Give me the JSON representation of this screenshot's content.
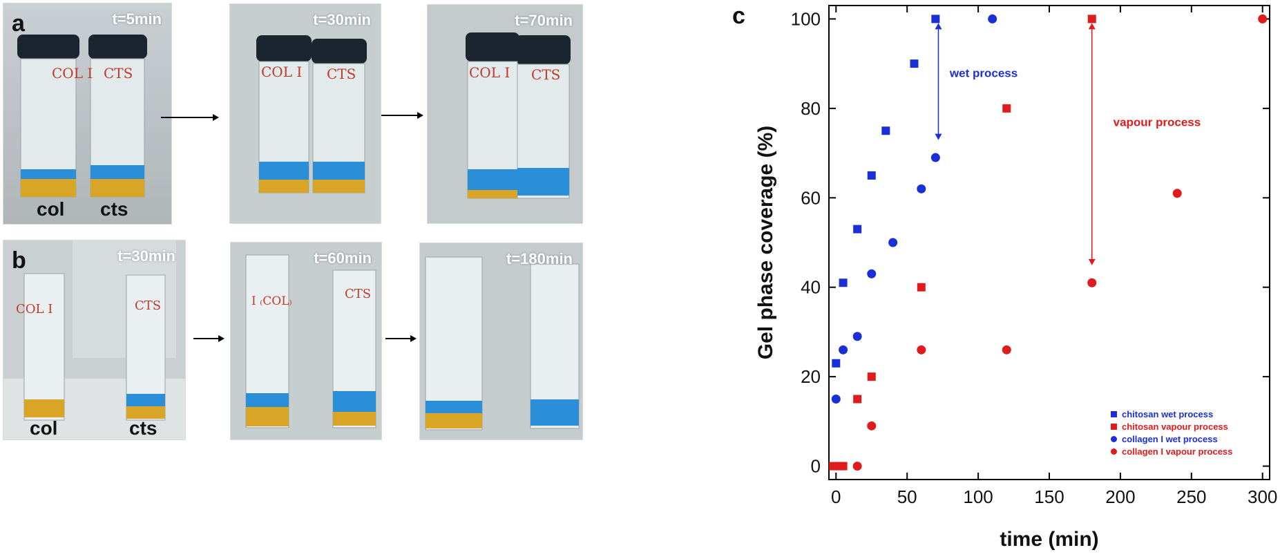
{
  "colors": {
    "chitosan_wet": "#1a2fd6",
    "chitosan_vapour": "#e01b1b",
    "collagen_wet": "#1a2fd6",
    "collagen_vapour": "#e01b1b",
    "blue_gel": "#2a8fd8",
    "yellow_liquid": "#d9a526"
  },
  "panel_a": {
    "letter": "a",
    "photos": [
      {
        "time": "t=5min",
        "left_label": "col",
        "right_label": "cts",
        "left_handwriting": "COL I",
        "right_handwriting": "CTS"
      },
      {
        "time": "t=30min",
        "left_handwriting": "COL I",
        "right_handwriting": "CTS"
      },
      {
        "time": "t=70min",
        "left_handwriting": "COL I",
        "right_handwriting": "CTS"
      }
    ]
  },
  "panel_b": {
    "letter": "b",
    "photos": [
      {
        "time": "t=30min",
        "left_label": "col",
        "right_label": "cts",
        "left_handwriting": "COL I",
        "right_handwriting": "CTS"
      },
      {
        "time": "t=60min",
        "left_handwriting": "I ₍COL₎",
        "right_handwriting": "CTS"
      },
      {
        "time": "t=180min",
        "left_handwriting": "",
        "right_handwriting": ""
      }
    ]
  },
  "chart_data": {
    "type": "scatter",
    "panel_letter": "c",
    "xlabel": "time (min)",
    "ylabel": "Gel phase coverage (%)",
    "xlim": [
      -5,
      305
    ],
    "ylim": [
      -3,
      103
    ],
    "xticks": [
      0,
      50,
      100,
      150,
      200,
      250,
      300
    ],
    "yticks": [
      0,
      20,
      40,
      60,
      80,
      100
    ],
    "grid": false,
    "legend_position": "bottom-right",
    "series": [
      {
        "name": "chitosan wet process",
        "marker": "square",
        "color": "#1a2fd6",
        "x": [
          0,
          5,
          15,
          25,
          35,
          55,
          70
        ],
        "y": [
          23,
          41,
          53,
          65,
          75,
          90,
          100
        ]
      },
      {
        "name": "chitosan vapour process",
        "marker": "square",
        "color": "#e01b1b",
        "x": [
          -2,
          2,
          5,
          15,
          25,
          60,
          120,
          180
        ],
        "y": [
          0,
          0,
          0,
          15,
          20,
          40,
          80,
          100
        ]
      },
      {
        "name": "collagen I wet process",
        "marker": "circle",
        "color": "#1a2fd6",
        "x": [
          0,
          5,
          15,
          25,
          40,
          60,
          70,
          110
        ],
        "y": [
          15,
          26,
          29,
          43,
          50,
          62,
          69,
          100
        ]
      },
      {
        "name": "collagen I vapour process",
        "marker": "circle",
        "color": "#e01b1b",
        "x": [
          15,
          25,
          60,
          120,
          180,
          240,
          300
        ],
        "y": [
          0,
          9,
          26,
          26,
          41,
          61,
          100
        ]
      }
    ],
    "annotations": [
      {
        "text": "wet process",
        "color": "#1a2fd6",
        "x": 72,
        "y_from": 100,
        "y_to": 72,
        "text_x": 80,
        "text_y": 87
      },
      {
        "text": "vapour process",
        "color": "#e01b1b",
        "x": 180,
        "y_from": 100,
        "y_to": 44,
        "text_x": 195,
        "text_y": 76
      }
    ]
  }
}
